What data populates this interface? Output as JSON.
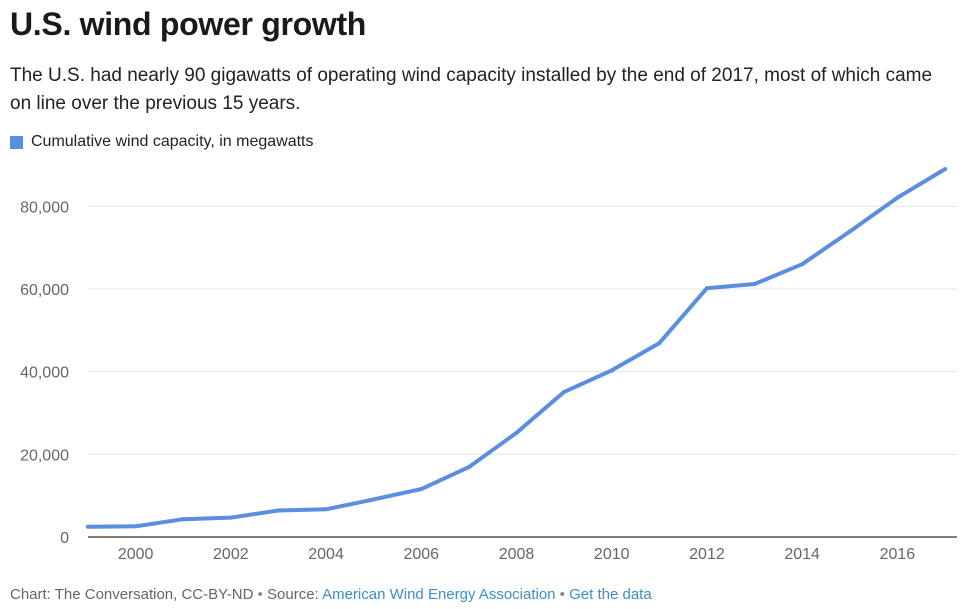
{
  "header": {
    "title": "U.S. wind power growth",
    "subtitle": "The U.S. had nearly 90 gigawatts of operating wind capacity installed by the end of 2017, most of which came on line over the previous 15 years."
  },
  "legend": {
    "label": "Cumulative wind capacity, in megawatts",
    "color": "#5b8ee0"
  },
  "chart_data": {
    "type": "line",
    "title": "U.S. wind power growth",
    "xlabel": "",
    "ylabel": "",
    "x": [
      1999,
      2000,
      2001,
      2002,
      2003,
      2004,
      2005,
      2006,
      2007,
      2008,
      2009,
      2010,
      2011,
      2012,
      2013,
      2014,
      2015,
      2016,
      2017
    ],
    "series": [
      {
        "name": "Cumulative wind capacity, in megawatts",
        "color": "#5b8ee0",
        "values": [
          2500,
          2600,
          4300,
          4700,
          6400,
          6700,
          9100,
          11600,
          16900,
          25200,
          35100,
          40300,
          46900,
          60200,
          61200,
          66000,
          73900,
          82100,
          89000
        ]
      }
    ],
    "xlim": [
      1999,
      2017
    ],
    "ylim": [
      0,
      90000
    ],
    "x_ticks": [
      2000,
      2002,
      2004,
      2006,
      2008,
      2010,
      2012,
      2014,
      2016
    ],
    "y_ticks": [
      0,
      20000,
      40000,
      60000,
      80000
    ],
    "x_tick_labels": [
      "2000",
      "2002",
      "2004",
      "2006",
      "2008",
      "2010",
      "2012",
      "2014",
      "2016"
    ],
    "y_tick_labels": [
      "0",
      "20,000",
      "40,000",
      "60,000",
      "80,000"
    ],
    "grid": true,
    "legend_position": "top-left"
  },
  "footer": {
    "credit": "Chart: The Conversation, CC-BY-ND",
    "separator": " • ",
    "source_prefix": "Source: ",
    "source_link": "American Wind Energy Association",
    "data_link": "Get the data"
  }
}
